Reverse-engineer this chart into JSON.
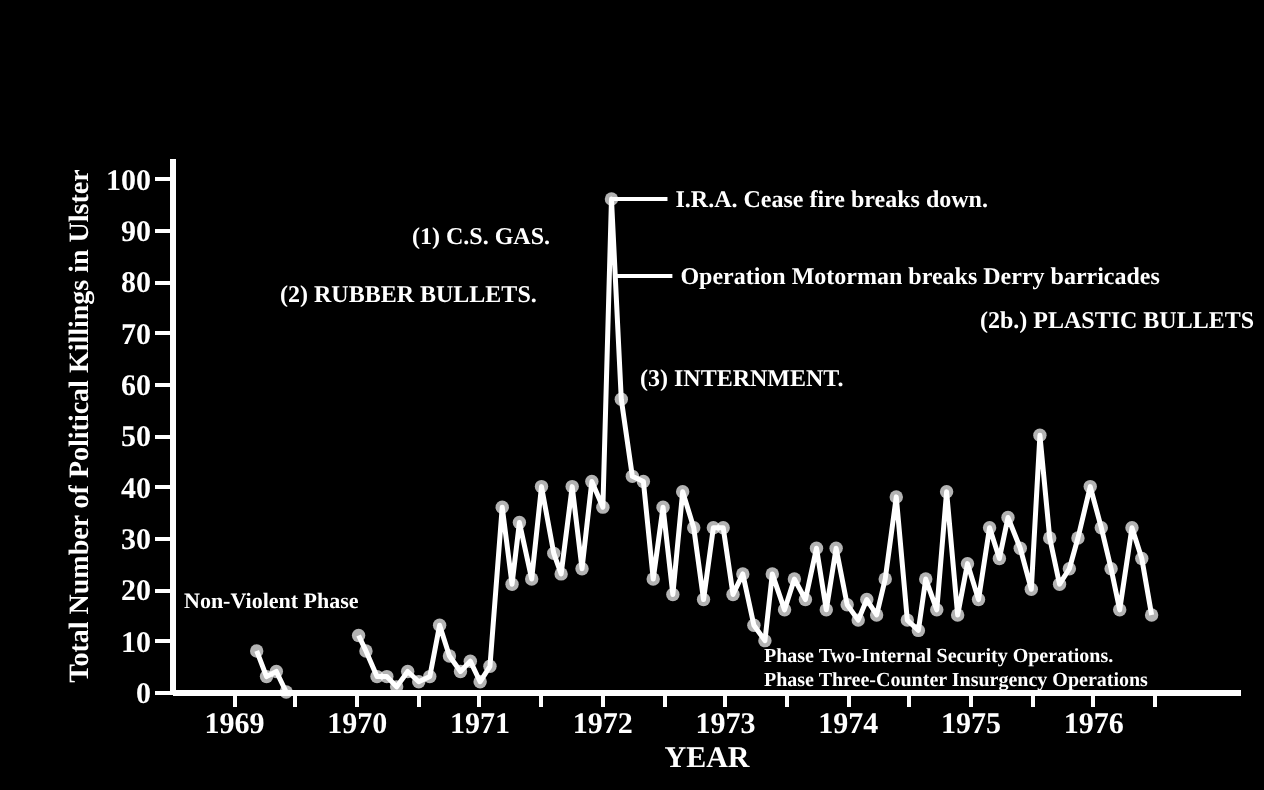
{
  "chart_data": {
    "type": "line",
    "xlabel": "YEAR",
    "ylabel": "Total Number of Political Killings in Ulster",
    "x": [
      1969.69,
      1969.77,
      1969.85,
      1969.93,
      1970.2,
      1970.52,
      1970.58,
      1970.67,
      1970.75,
      1970.83,
      1970.92,
      1971.01,
      1971.1,
      1971.18,
      1971.26,
      1971.35,
      1971.43,
      1971.51,
      1971.59,
      1971.69,
      1971.77,
      1971.83,
      1971.93,
      1972.01,
      1972.11,
      1972.17,
      1972.26,
      1972.34,
      1972.42,
      1972.51,
      1972.58,
      1972.66,
      1972.75,
      1972.84,
      1972.92,
      1973.0,
      1973.08,
      1973.16,
      1973.25,
      1973.33,
      1973.41,
      1973.49,
      1973.57,
      1973.65,
      1973.74,
      1973.83,
      1973.89,
      1973.99,
      1974.07,
      1974.16,
      1974.25,
      1974.33,
      1974.41,
      1974.5,
      1974.59,
      1974.66,
      1974.74,
      1974.81,
      1974.9,
      1974.99,
      1975.08,
      1975.14,
      1975.23,
      1975.31,
      1975.4,
      1975.48,
      1975.57,
      1975.66,
      1975.74,
      1975.81,
      1975.91,
      1976.0,
      1976.07,
      1976.15,
      1976.23,
      1976.31,
      1976.38,
      1976.48,
      1976.57,
      1976.65,
      1976.72,
      1976.82,
      1976.9,
      1976.98
    ],
    "series": [
      {
        "color": "#ffffff",
        "values": [
          8,
          3,
          4,
          0,
          null,
          11,
          8,
          3,
          3,
          1,
          4,
          2,
          3,
          13,
          7,
          4,
          6,
          2,
          5,
          36,
          21,
          33,
          22,
          40,
          27,
          23,
          40,
          24,
          41,
          36,
          96,
          57,
          42,
          41,
          22,
          36,
          19,
          39,
          32,
          18,
          32,
          32,
          19,
          23,
          13,
          10,
          23,
          16,
          22,
          18,
          28,
          16,
          28,
          17,
          14,
          18,
          15,
          22,
          38,
          14,
          12,
          22,
          16,
          39,
          15,
          25,
          18,
          32,
          26,
          34,
          28,
          20,
          50,
          30,
          21,
          24,
          30,
          40,
          32,
          24,
          16,
          32,
          26,
          15
        ]
      }
    ],
    "xlim": [
      1969,
      1977.7
    ],
    "xticks": [
      {
        "value": 1969.5,
        "label": "1969"
      },
      {
        "value": 1970,
        "label": null
      },
      {
        "value": 1970.5,
        "label": "1970"
      },
      {
        "value": 1971,
        "label": null
      },
      {
        "value": 1971.5,
        "label": "1971"
      },
      {
        "value": 1972,
        "label": null
      },
      {
        "value": 1972.5,
        "label": "1972"
      },
      {
        "value": 1973,
        "label": null
      },
      {
        "value": 1973.5,
        "label": "1973"
      },
      {
        "value": 1974,
        "label": null
      },
      {
        "value": 1974.5,
        "label": "1974"
      },
      {
        "value": 1975,
        "label": null
      },
      {
        "value": 1975.5,
        "label": "1975"
      },
      {
        "value": 1976,
        "label": null
      },
      {
        "value": 1976.5,
        "label": "1976"
      },
      {
        "value": 1977,
        "label": null
      }
    ],
    "ylim": [
      0,
      104
    ],
    "yticks": [
      0,
      10,
      20,
      30,
      40,
      50,
      60,
      70,
      80,
      90,
      100
    ],
    "marker": "circle",
    "grid": false,
    "legend": false,
    "annotations": [
      {
        "text": "I.R.A. Cease fire breaks down.",
        "x": 1972.58,
        "y": 96
      },
      {
        "text": "Operation Motorman breaks Derry barricades",
        "x": 1972.62,
        "y": 81
      },
      "(1) C.S. GAS.",
      "(2) RUBBER BULLETS.",
      "(2b.) PLASTIC BULLETS",
      "(3) INTERNMENT.",
      "Non-Violent Phase",
      "Phase Two-Internal Security Operations.",
      "Phase Three-Counter Insurgency Operations"
    ]
  }
}
